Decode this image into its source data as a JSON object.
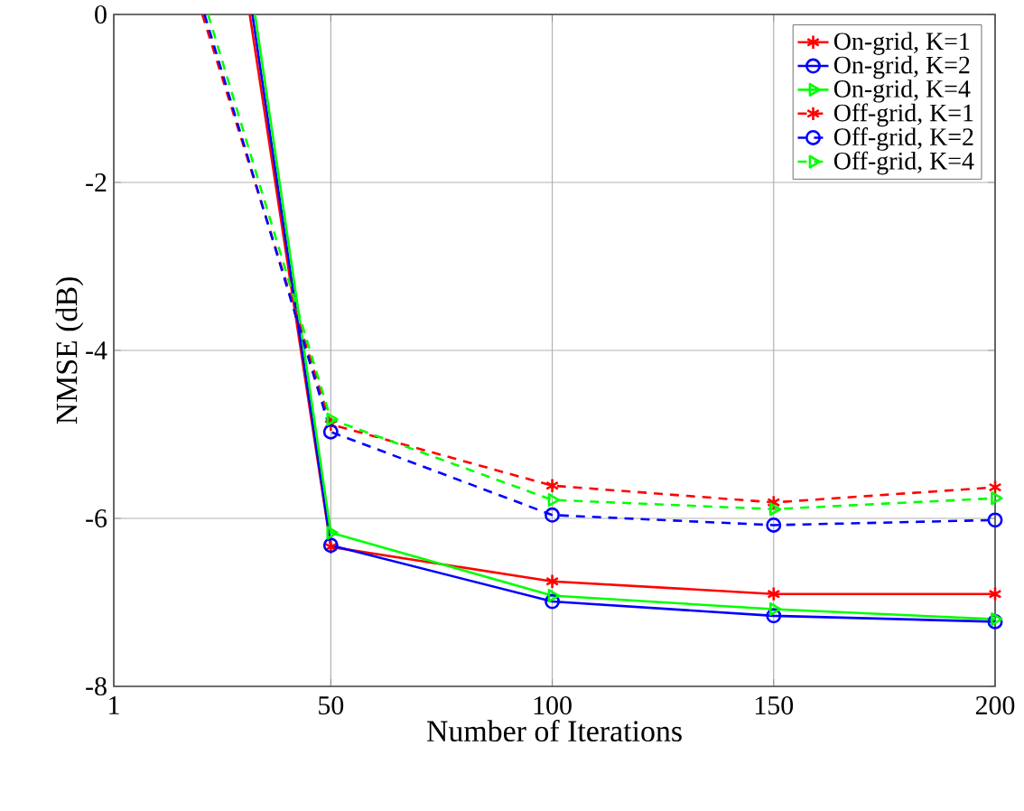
{
  "chart_data": {
    "type": "line",
    "xlabel": "Number of Iterations",
    "ylabel": "NMSE (dB)",
    "xlim": [
      1,
      200
    ],
    "xticks": [
      1,
      50,
      100,
      150,
      200
    ],
    "ylim": [
      -8,
      0
    ],
    "yticks": [
      -8,
      -6,
      -4,
      -2,
      0
    ],
    "grid": true,
    "legend": "top right",
    "series": [
      {
        "name": "On-grid, K=1",
        "color": "#ff0000",
        "marker": "cross",
        "line_style": "solid",
        "x": [
          31.7,
          50,
          100,
          150,
          200
        ],
        "values": [
          0,
          -6.34,
          -6.75,
          -6.9,
          -6.9
        ]
      },
      {
        "name": "On-grid, K=2",
        "color": "#0000ff",
        "marker": "circle",
        "line_style": "solid",
        "x": [
          32.3,
          50,
          100,
          150,
          200
        ],
        "values": [
          0,
          -6.32,
          -6.99,
          -7.16,
          -7.23
        ]
      },
      {
        "name": "On-grid, K=4",
        "color": "#00ff00",
        "marker": "triangle",
        "line_style": "solid",
        "x": [
          32.9,
          50,
          100,
          150,
          200
        ],
        "values": [
          0,
          -6.17,
          -6.92,
          -7.08,
          -7.2
        ]
      },
      {
        "name": "Off-grid, K=1",
        "color": "#ff0000",
        "marker": "cross",
        "line_style": "dashed",
        "x": [
          21,
          50,
          100,
          150,
          200
        ],
        "values": [
          0,
          -4.88,
          -5.61,
          -5.81,
          -5.63
        ]
      },
      {
        "name": "Off-grid, K=2",
        "color": "#0000ff",
        "marker": "circle",
        "line_style": "dashed",
        "x": [
          21.5,
          50,
          100,
          150,
          200
        ],
        "values": [
          0,
          -4.97,
          -5.96,
          -6.08,
          -6.02
        ]
      },
      {
        "name": "Off-grid, K=4",
        "color": "#00ff00",
        "marker": "triangle",
        "line_style": "dashed",
        "x": [
          22.3,
          50,
          100,
          150,
          200
        ],
        "values": [
          0,
          -4.82,
          -5.78,
          -5.89,
          -5.76
        ]
      }
    ]
  }
}
